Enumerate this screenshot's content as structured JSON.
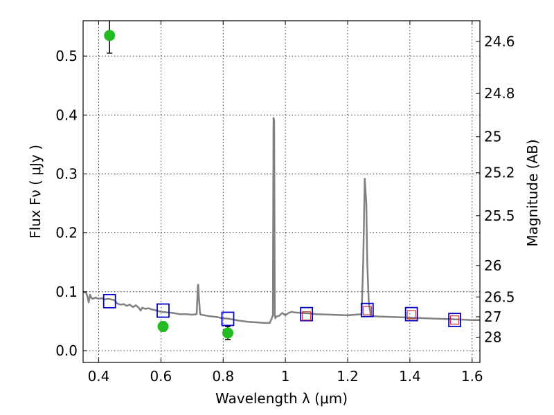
{
  "chart_data": {
    "type": "line",
    "xlabel": "Wavelength  λ (μm)",
    "ylabel": "Flux  Fν  ( μJy )",
    "ylabel_right": "Magnitude (AB)",
    "xlim": [
      0.35,
      1.625
    ],
    "ylim": [
      -0.02,
      0.56
    ],
    "grid": true,
    "x_ticks": [
      0.4,
      0.6,
      0.8,
      1.0,
      1.2,
      1.4,
      1.6
    ],
    "x_tick_labels": [
      "0.4",
      "0.6",
      "0.8",
      "1",
      "1.2",
      "1.4",
      "1.6"
    ],
    "y_ticks": [
      0.0,
      0.1,
      0.2,
      0.3,
      0.4,
      0.5
    ],
    "y_tick_labels": [
      "0.0",
      "0.1",
      "0.2",
      "0.3",
      "0.4",
      "0.5"
    ],
    "mag_ticks": [
      24.6,
      24.8,
      25,
      25.2,
      25.5,
      26,
      26.5,
      27,
      28
    ],
    "mag_tick_labels": [
      "24.6",
      "24.8",
      "25",
      "25.2",
      "25.5",
      "26",
      "26.5",
      "27",
      "28"
    ],
    "series": [
      {
        "kind": "spectrum",
        "color": "#808080",
        "x": [
          0.35,
          0.36,
          0.365,
          0.368,
          0.372,
          0.376,
          0.38,
          0.39,
          0.4,
          0.41,
          0.42,
          0.43,
          0.44,
          0.45,
          0.46,
          0.47,
          0.48,
          0.49,
          0.5,
          0.51,
          0.52,
          0.53,
          0.535,
          0.54,
          0.55,
          0.56,
          0.57,
          0.58,
          0.6,
          0.62,
          0.64,
          0.66,
          0.68,
          0.7,
          0.715,
          0.719,
          0.72,
          0.722,
          0.726,
          0.73,
          0.75,
          0.78,
          0.8,
          0.82,
          0.85,
          0.88,
          0.91,
          0.93,
          0.95,
          0.96,
          0.962,
          0.964,
          0.966,
          0.968,
          0.97,
          0.98,
          0.99,
          1.0,
          1.01,
          1.02,
          1.03,
          1.05,
          1.08,
          1.1,
          1.15,
          1.2,
          1.245,
          1.25,
          1.255,
          1.26,
          1.263,
          1.268,
          1.275,
          1.3,
          1.35,
          1.4,
          1.45,
          1.5,
          1.55,
          1.6,
          1.625
        ],
        "y": [
          0.1,
          0.098,
          0.09,
          0.082,
          0.095,
          0.09,
          0.088,
          0.09,
          0.088,
          0.089,
          0.087,
          0.088,
          0.087,
          0.086,
          0.08,
          0.078,
          0.079,
          0.076,
          0.078,
          0.074,
          0.077,
          0.072,
          0.068,
          0.073,
          0.071,
          0.072,
          0.07,
          0.069,
          0.066,
          0.065,
          0.064,
          0.062,
          0.062,
          0.061,
          0.062,
          0.111,
          0.112,
          0.09,
          0.062,
          0.061,
          0.059,
          0.057,
          0.055,
          0.054,
          0.051,
          0.049,
          0.048,
          0.047,
          0.047,
          0.06,
          0.395,
          0.39,
          0.06,
          0.055,
          0.058,
          0.059,
          0.064,
          0.06,
          0.064,
          0.066,
          0.065,
          0.064,
          0.063,
          0.062,
          0.061,
          0.06,
          0.062,
          0.15,
          0.292,
          0.25,
          0.15,
          0.08,
          0.059,
          0.058,
          0.057,
          0.056,
          0.055,
          0.054,
          0.053,
          0.052,
          0.052
        ]
      },
      {
        "kind": "detections",
        "color": "#22bb22",
        "x": [
          0.435,
          0.607,
          0.815
        ],
        "y": [
          0.535,
          0.041,
          0.03
        ],
        "yerr": [
          0.03,
          0.008,
          0.011
        ]
      },
      {
        "kind": "model-photometry",
        "color": "#0000cc",
        "x": [
          0.435,
          0.607,
          0.815,
          1.068,
          1.263,
          1.405,
          1.544
        ],
        "y": [
          0.084,
          0.068,
          0.054,
          0.062,
          0.069,
          0.062,
          0.052
        ]
      },
      {
        "kind": "observed-upper",
        "color": "#cc3333",
        "x": [
          1.068,
          1.263,
          1.405,
          1.544
        ],
        "y": [
          0.059,
          0.068,
          0.061,
          0.052
        ]
      }
    ]
  }
}
